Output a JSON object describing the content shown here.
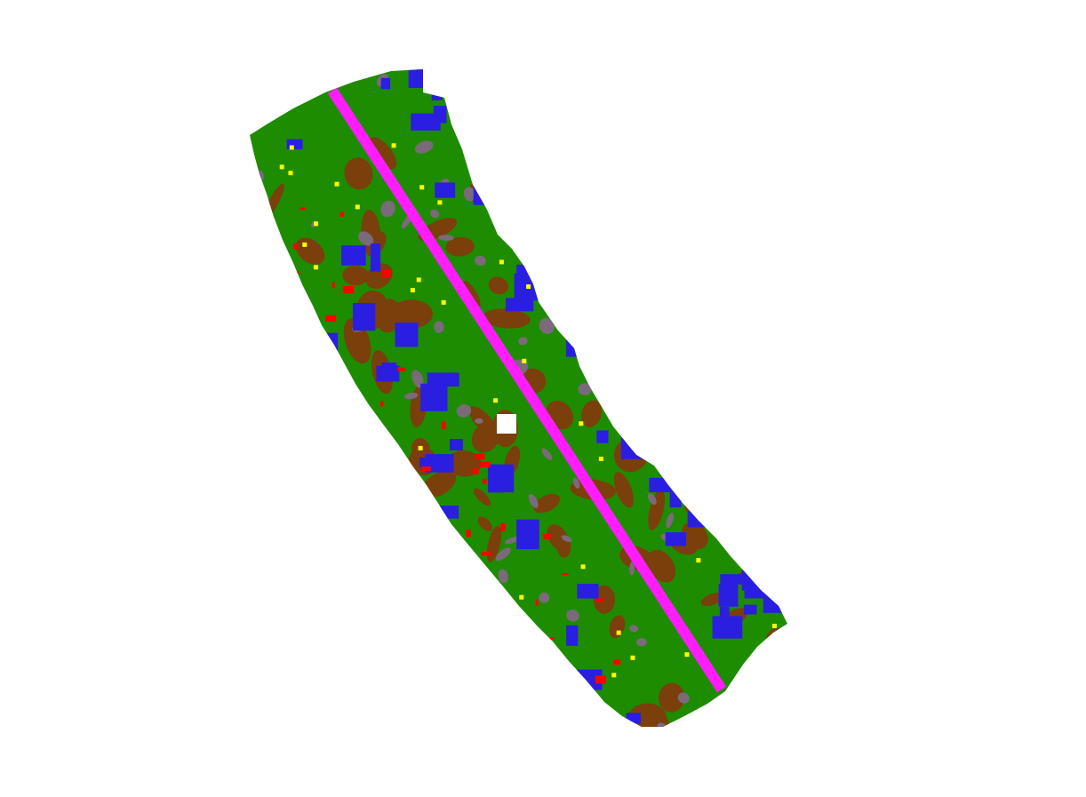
{
  "map": {
    "type": "semantic-segmentation-map",
    "background_color": "#ffffff",
    "classes": [
      {
        "name": "vegetation",
        "color": "#1e8c00"
      },
      {
        "name": "building",
        "color": "#2a1ee0"
      },
      {
        "name": "bare-ground",
        "color": "#7a3f0a"
      },
      {
        "name": "road",
        "color": "#ff1cff"
      },
      {
        "name": "clutter",
        "color": "#ff0000"
      },
      {
        "name": "vehicle",
        "color": "#ffff00"
      },
      {
        "name": "low-surface",
        "color": "#7a6a7a"
      }
    ],
    "gap_color": "#ffffff"
  }
}
